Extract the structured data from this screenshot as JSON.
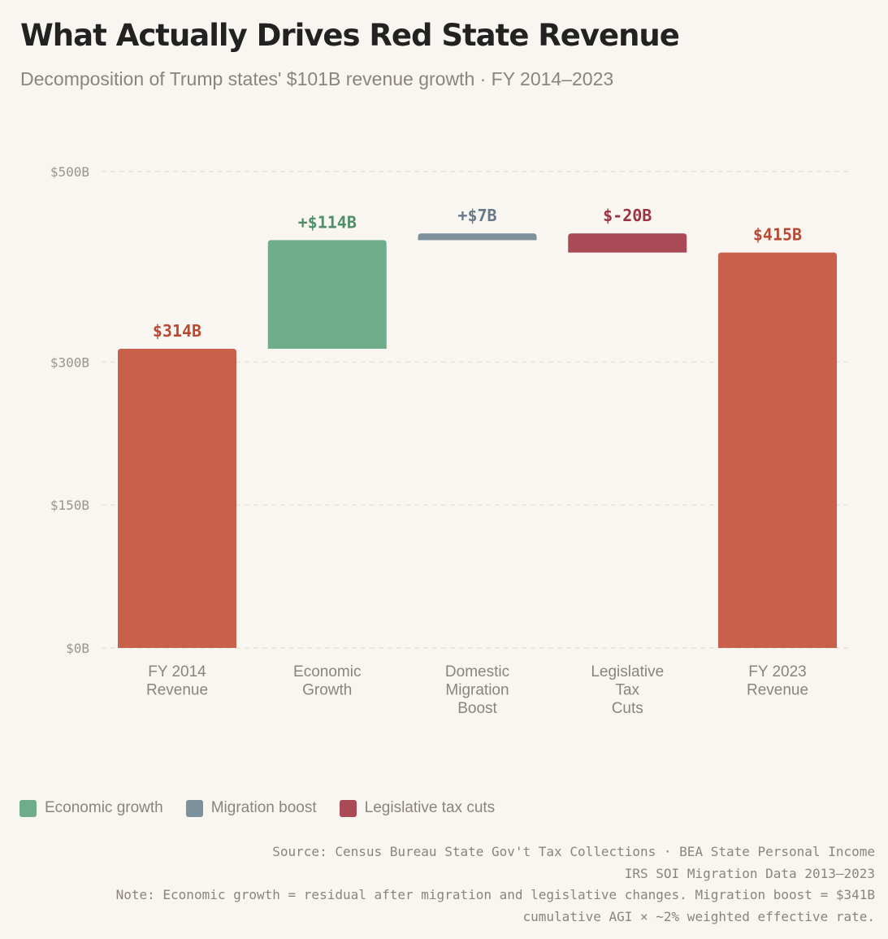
{
  "header": {
    "title": "What Actually Drives Red State Revenue",
    "subtitle": "Decomposition of Trump states' $101B revenue growth · FY 2014–2023"
  },
  "chart_data": {
    "type": "waterfall",
    "title": "What Actually Drives Red State Revenue",
    "subtitle": "Decomposition of Trump states' $101B revenue growth · FY 2014–2023",
    "ylim": [
      0,
      500
    ],
    "yticks": [
      {
        "value": 0,
        "label": "$0B"
      },
      {
        "value": 150,
        "label": "$150B"
      },
      {
        "value": 300,
        "label": "$300B"
      },
      {
        "value": 500,
        "label": "$500B"
      }
    ],
    "grid": true,
    "steps": [
      {
        "category": [
          "FY 2014",
          "Revenue"
        ],
        "base": 0,
        "value": 314,
        "kind": "total",
        "label": "$314B",
        "color": "#c8604a",
        "label_color": "#b84a33"
      },
      {
        "category": [
          "Economic",
          "Growth"
        ],
        "base": 314,
        "value": 114,
        "kind": "delta",
        "label": "+$114B",
        "color": "#6fac89",
        "label_color": "#4e8e69"
      },
      {
        "category": [
          "Domestic",
          "Migration",
          "Boost"
        ],
        "base": 428,
        "value": 7,
        "kind": "delta",
        "label": "+$7B",
        "color": "#7d919c",
        "label_color": "#66788a"
      },
      {
        "category": [
          "Legislative",
          "Tax",
          "Cuts"
        ],
        "base": 435,
        "value": -20,
        "kind": "delta",
        "label": "$-20B",
        "color": "#a94a56",
        "label_color": "#9a3442"
      },
      {
        "category": [
          "FY 2023",
          "Revenue"
        ],
        "base": 0,
        "value": 415,
        "kind": "total",
        "label": "$415B",
        "color": "#c8604a",
        "label_color": "#b84a33"
      }
    ]
  },
  "legend": {
    "items": [
      {
        "label": "Economic growth",
        "color": "#6fac89"
      },
      {
        "label": "Migration boost",
        "color": "#7d919c"
      },
      {
        "label": "Legislative tax cuts",
        "color": "#a94a56"
      }
    ]
  },
  "footer": {
    "source_line1": "Source: Census Bureau State Gov't Tax Collections · BEA State Personal Income",
    "source_line2": "IRS SOI Migration Data 2013–2023",
    "note_line1": "Note: Economic growth = residual after migration and legislative changes. Migration boost = $341B",
    "note_line2": "cumulative AGI × ~2% weighted effective rate."
  }
}
